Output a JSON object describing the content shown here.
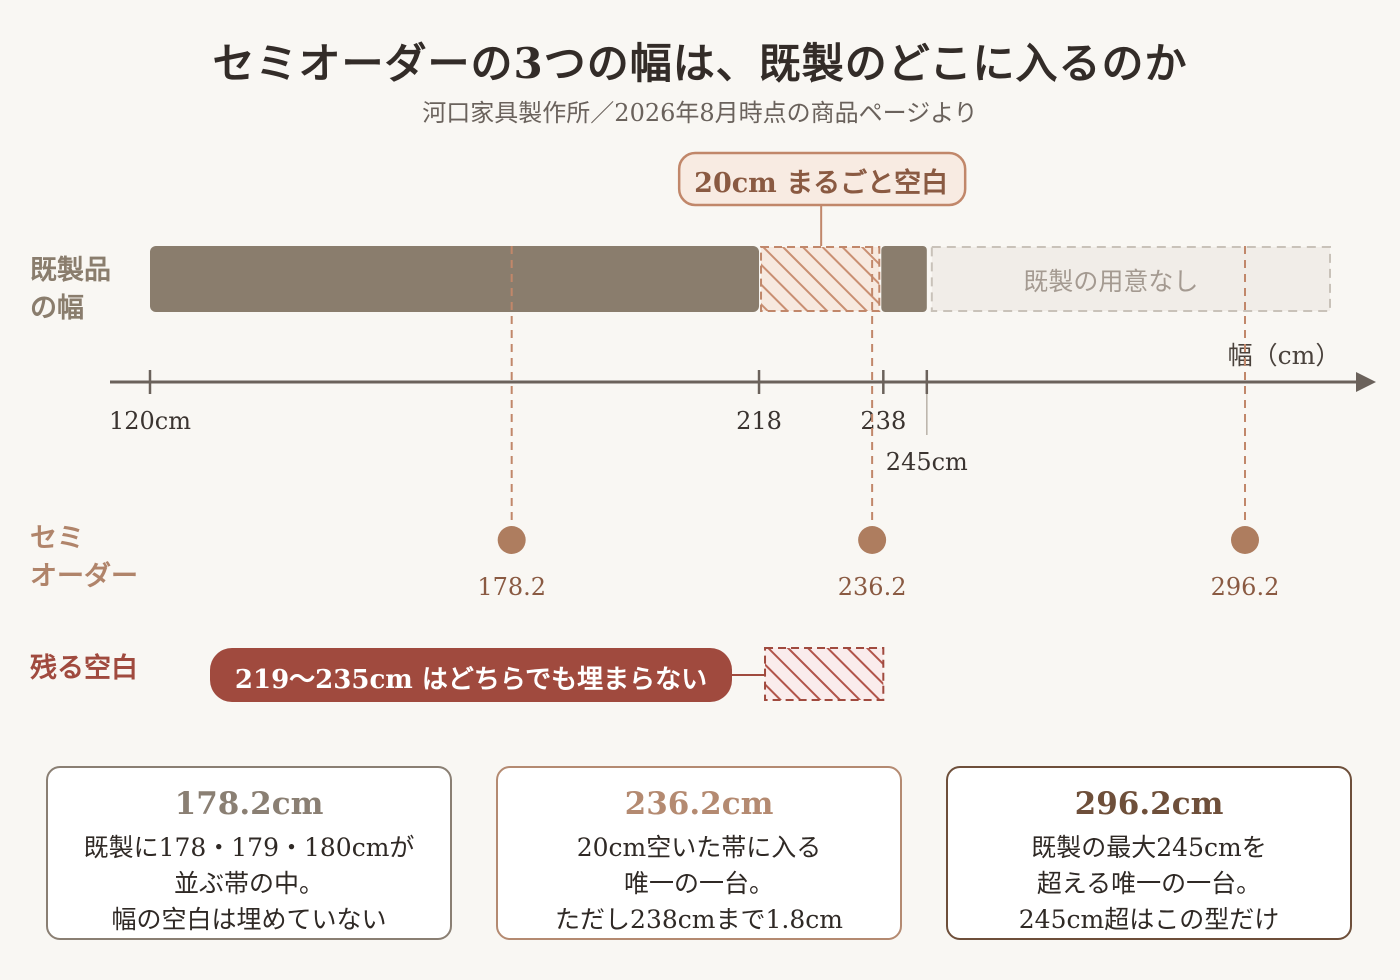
{
  "header": {
    "title": "セミオーダーの3つの幅は、既製のどこに入るのか",
    "subtitle": "河口家具製作所／2026年8月時点の商品ページより"
  },
  "rows": {
    "kisei": [
      "既製品",
      "の幅"
    ],
    "semi": [
      "セミ",
      "オーダー"
    ],
    "zan": "残る空白"
  },
  "axis": {
    "title": "幅（cm）",
    "min": 120,
    "max": 300,
    "ticks": [
      {
        "value": 120,
        "label": "120cm"
      },
      {
        "value": 218,
        "label": "218"
      },
      {
        "value": 238,
        "label": "238"
      },
      {
        "value": 245,
        "label": "245cm"
      }
    ]
  },
  "ready_made": {
    "segments": [
      {
        "from": 120,
        "to": 218
      },
      {
        "from": 238,
        "to": 245
      }
    ],
    "gap": {
      "from": 218,
      "to": 238,
      "label": "20cm まるごと空白"
    },
    "none": {
      "from": 245,
      "to": 310,
      "label": "既製の用意なし"
    }
  },
  "semi_order": {
    "points": [
      {
        "value": 178.2,
        "label": "178.2"
      },
      {
        "value": 236.2,
        "label": "236.2"
      },
      {
        "value": 296.2,
        "label": "296.2"
      }
    ]
  },
  "remaining_gap": {
    "from": 219,
    "to": 235,
    "label": "219〜235cm はどちらでも埋まらない"
  },
  "cards": [
    {
      "title": "178.2cm",
      "lines": [
        "既製に178・179・180cmが",
        "並ぶ帯の中。",
        "幅の空白は埋めていない"
      ]
    },
    {
      "title": "236.2cm",
      "lines": [
        "20cm空いた帯に入る",
        "唯一の一台。",
        "ただし238cmまで1.8cm"
      ]
    },
    {
      "title": "296.2cm",
      "lines": [
        "既製の最大245cmを",
        "超える唯一の一台。",
        "245cm超はこの型だけ"
      ]
    }
  ],
  "colors": {
    "ready_made": "#8a7d6d",
    "gap": "#c1876a",
    "semi": "#ae7d5f",
    "remaining": "#a04a3e",
    "axis": "#6b625b"
  }
}
